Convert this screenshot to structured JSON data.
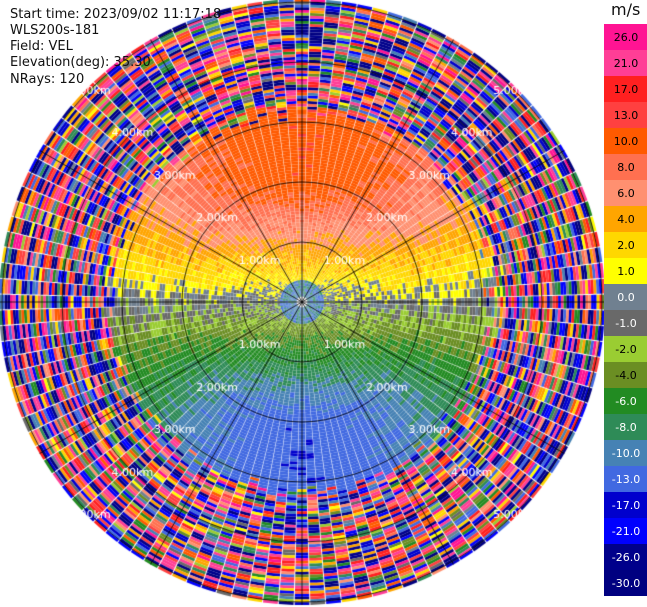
{
  "header": {
    "start_time": "Start time: 2023/09/02 11:17:18",
    "instrument": "WLS200s-181",
    "field": "Field: VEL",
    "elevation": "Elevation(deg): 35.30",
    "nrays": "NRays: 120"
  },
  "colorbar": {
    "unit": "m/s",
    "ticks": [
      "26.0",
      "21.0",
      "17.0",
      "13.0",
      "10.0",
      "8.0",
      "6.0",
      "4.0",
      "2.0",
      "1.0",
      "0.0",
      "-1.0",
      "-2.0",
      "-4.0",
      "-6.0",
      "-8.0",
      "-10.0",
      "-13.0",
      "-17.0",
      "-21.0",
      "-26.0",
      "-30.0"
    ],
    "colors": [
      "#ff1493",
      "#ff3e96",
      "#ff2020",
      "#ff4040",
      "#ff5a00",
      "#ff7050",
      "#ff9070",
      "#ffa500",
      "#ffd700",
      "#ffff00",
      "#708090",
      "#696969",
      "#9acd32",
      "#6b8e23",
      "#228b22",
      "#2e8b57",
      "#4682b4",
      "#4169e1",
      "#0000cd",
      "#0000ff",
      "#00008b",
      "#000080"
    ]
  },
  "chart_data": {
    "type": "ppi",
    "field": "VEL",
    "unit": "m/s",
    "elevation_deg": 35.3,
    "nrays": 120,
    "range_rings_km": [
      1,
      2,
      3,
      4,
      5
    ],
    "ring_labels": [
      "1.00km",
      "2.00km",
      "3.00km",
      "4.00km",
      "5.00km"
    ],
    "value_bins": [
      -30,
      -26,
      -21,
      -17,
      -13,
      -10,
      -8,
      -6,
      -4,
      -2,
      -1,
      0,
      1,
      2,
      4,
      6,
      8,
      10,
      13,
      17,
      21,
      26
    ],
    "coherent_max_range_km": 3.2,
    "pattern": "positive (receding) velocities to the north, negative (approaching) to the south; noise beyond ~3 km"
  }
}
